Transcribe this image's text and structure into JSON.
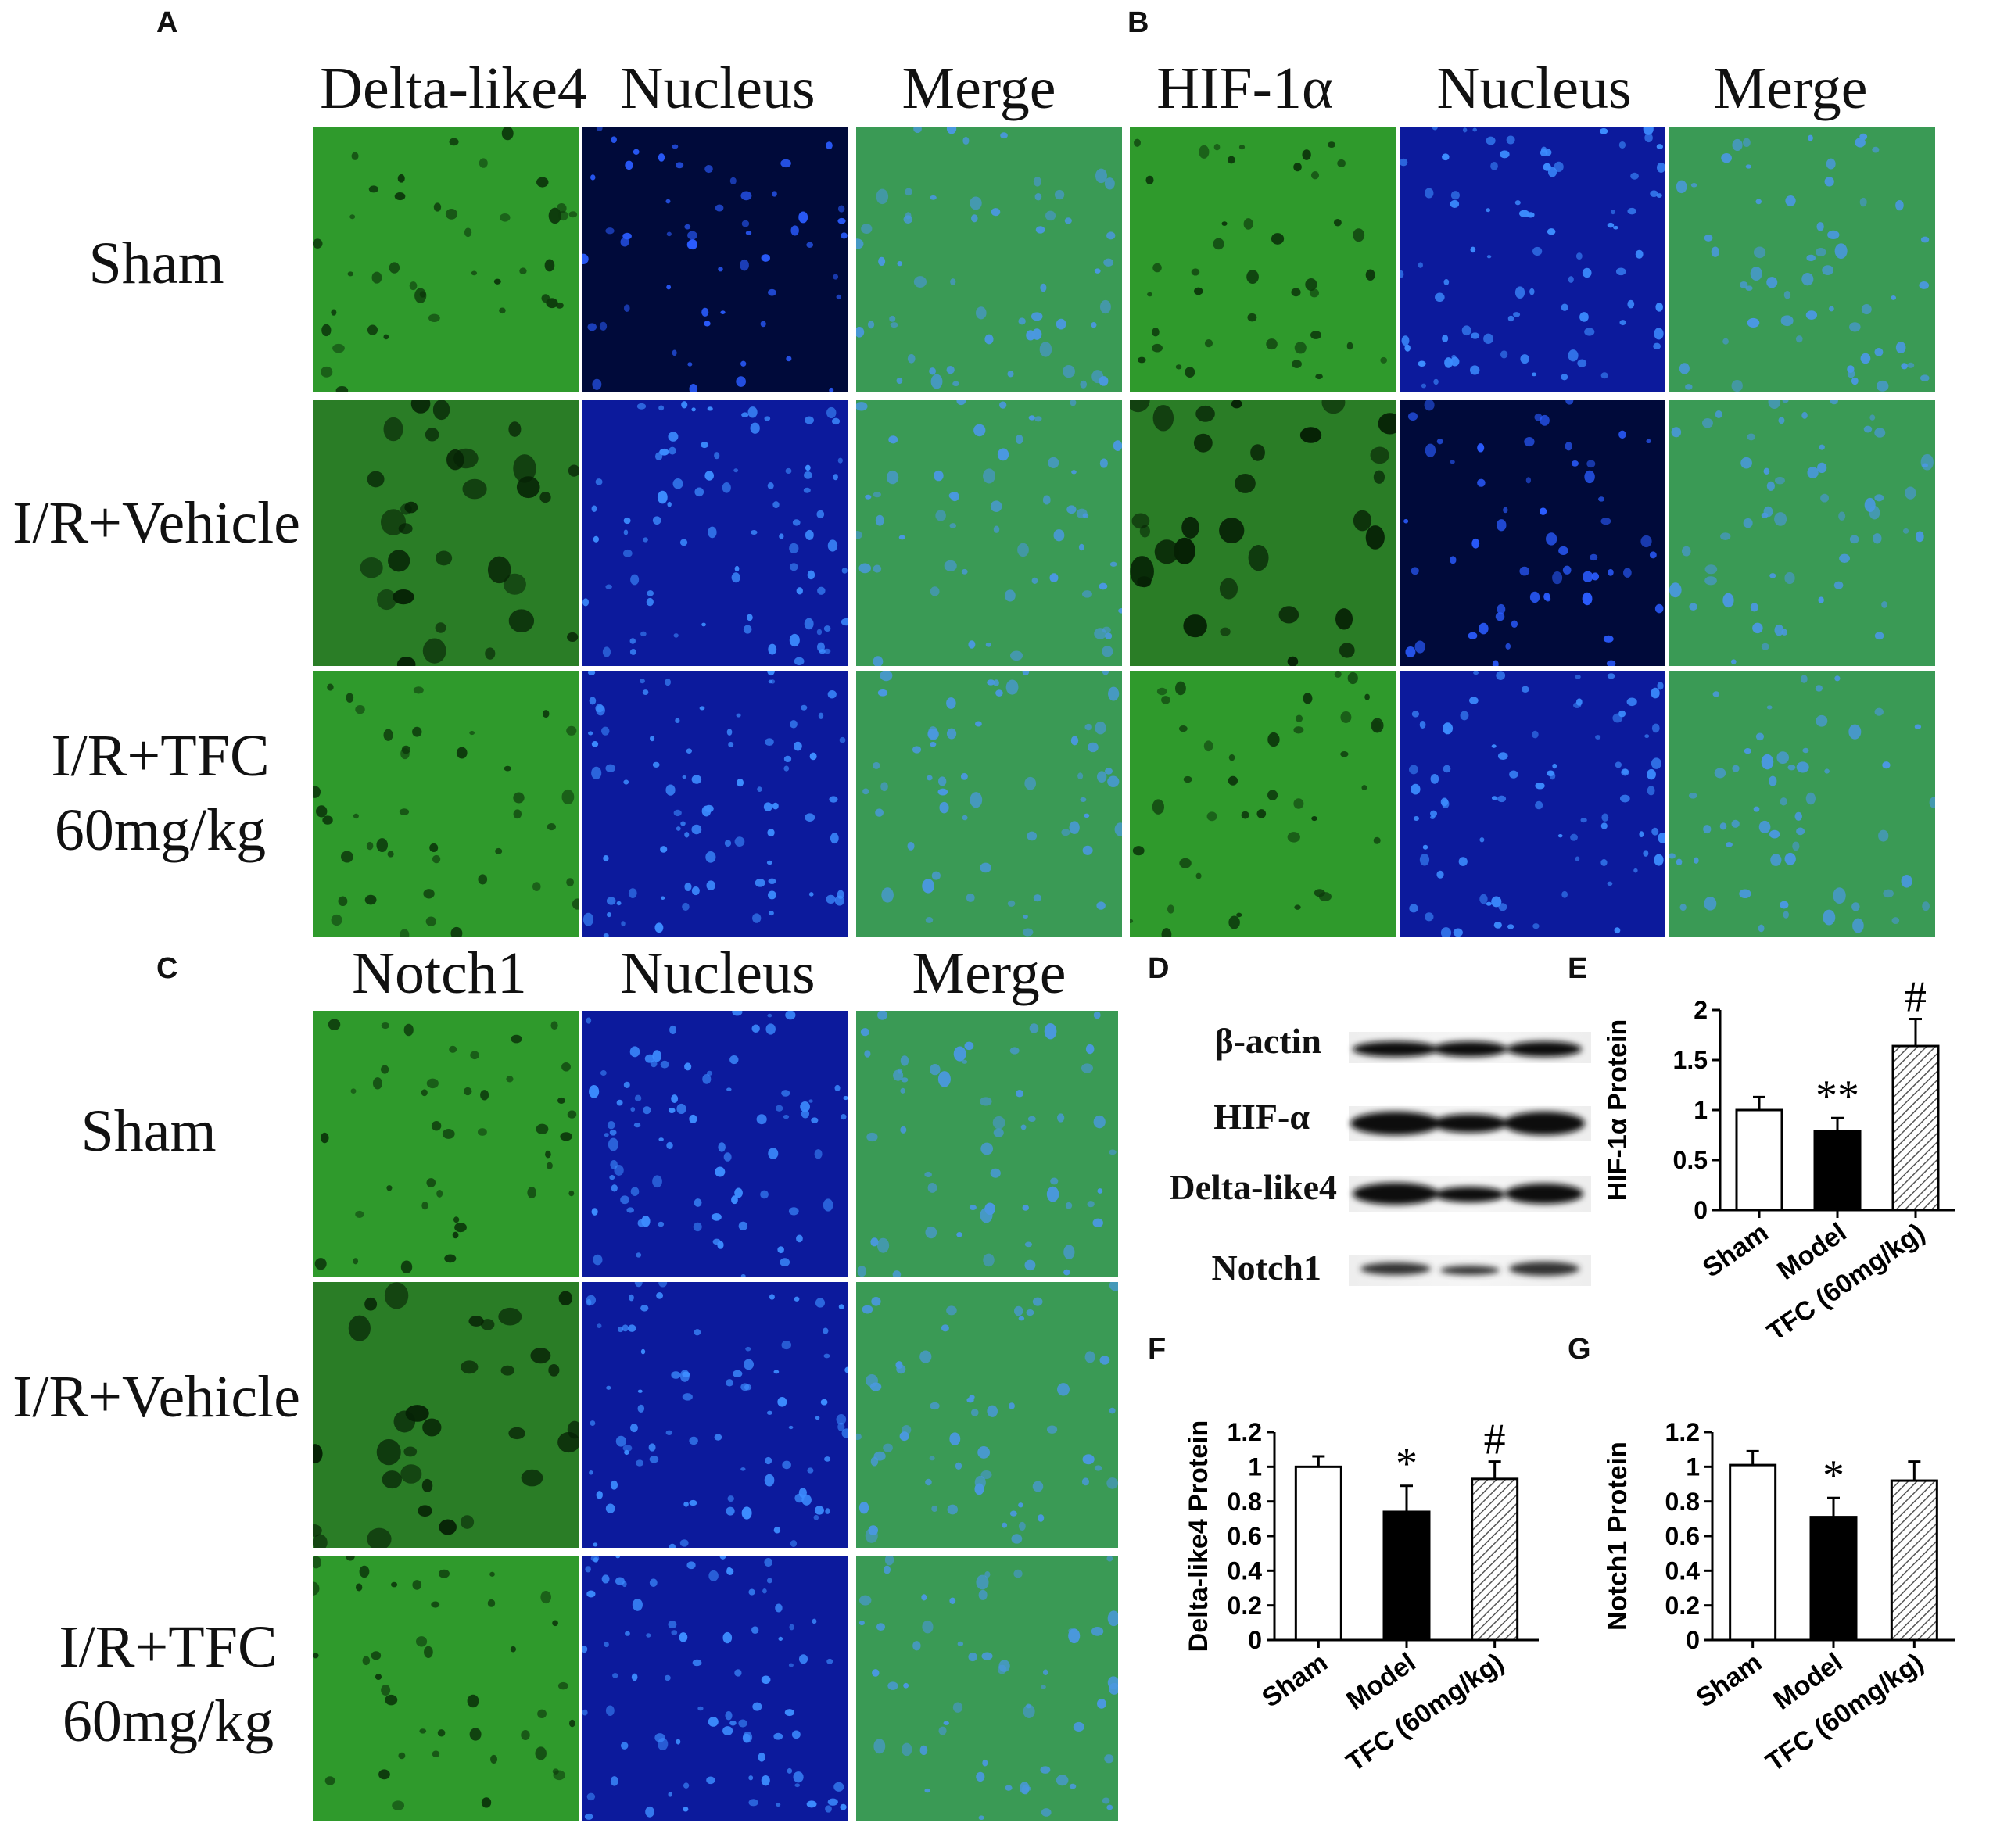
{
  "panels": {
    "A": {
      "letter": "A",
      "headers": [
        "Delta-like4",
        "Nucleus",
        "Merge"
      ],
      "rows": [
        "Sham",
        "I/R+Vehicle",
        "I/R+TFC 60mg/kg"
      ]
    },
    "B": {
      "letter": "B",
      "headers": [
        "HIF-1α",
        "Nucleus",
        "Merge"
      ]
    },
    "C": {
      "letter": "C",
      "headers": [
        "Notch1",
        "Nucleus",
        "Merge"
      ],
      "rows": [
        "Sham",
        "I/R+Vehicle",
        "I/R+TFC 60mg/kg"
      ]
    },
    "D": {
      "letter": "D",
      "bands": [
        "β-actin",
        "HIF-α",
        "Delta-like4",
        "Notch1"
      ]
    },
    "E": {
      "letter": "E"
    },
    "F": {
      "letter": "F"
    },
    "G": {
      "letter": "G"
    }
  },
  "colors": {
    "green_stain": "#2ea02e",
    "nucleus_blue": "#1a2fd8",
    "sham_bar": "#ffffff",
    "model_bar": "#000000",
    "tfc_bar": "hatched-gray"
  },
  "chart_data": [
    {
      "type": "bar",
      "panel": "E",
      "ylabel": "HIF-1α Protein",
      "categories": [
        "Sham",
        "Model",
        "TFC (60mg/kg)"
      ],
      "values": [
        1.0,
        0.79,
        1.64
      ],
      "errors": [
        0.13,
        0.13,
        0.27
      ],
      "annotations": [
        "",
        "**",
        "#"
      ],
      "ylim": [
        0,
        2
      ],
      "yticks": [
        "0",
        "0.5",
        "1",
        "1.5",
        "2"
      ],
      "ytick_values": [
        0,
        0.5,
        1,
        1.5,
        2
      ]
    },
    {
      "type": "bar",
      "panel": "F",
      "ylabel": "Delta-like4 Protein",
      "categories": [
        "Sham",
        "Model",
        "TFC (60mg/kg)"
      ],
      "values": [
        1.0,
        0.74,
        0.93
      ],
      "errors": [
        0.06,
        0.15,
        0.1
      ],
      "annotations": [
        "",
        "*",
        "#"
      ],
      "ylim": [
        0,
        1.2
      ],
      "yticks": [
        "0",
        "0.2",
        "0.4",
        "0.6",
        "0.8",
        "1",
        "1.2"
      ],
      "ytick_values": [
        0,
        0.2,
        0.4,
        0.6,
        0.8,
        1,
        1.2
      ]
    },
    {
      "type": "bar",
      "panel": "G",
      "ylabel": "Notch1 Protein",
      "categories": [
        "Sham",
        "Model",
        "TFC (60mg/kg)"
      ],
      "values": [
        1.01,
        0.71,
        0.92
      ],
      "errors": [
        0.08,
        0.11,
        0.11
      ],
      "annotations": [
        "",
        "*",
        ""
      ],
      "ylim": [
        0,
        1.2
      ],
      "yticks": [
        "0",
        "0.2",
        "0.4",
        "0.6",
        "0.8",
        "1",
        "1.2"
      ],
      "ytick_values": [
        0,
        0.2,
        0.4,
        0.6,
        0.8,
        1,
        1.2
      ]
    }
  ]
}
